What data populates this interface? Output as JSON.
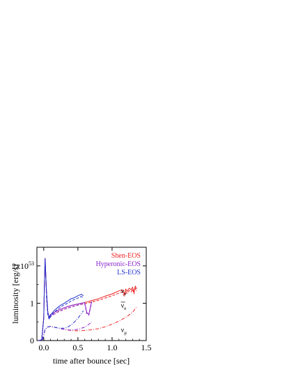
{
  "chart_data": {
    "type": "line",
    "xlabel": "time after bounce [sec]",
    "ylabel": "luminosity [erg/s]",
    "xlim": [
      -0.1,
      1.5
    ],
    "ylim": [
      0,
      2.5
    ],
    "y_unit_note": "1e53 erg/s",
    "x_ticks": [
      {
        "value": 0.0,
        "label": "0.0"
      },
      {
        "value": 0.5,
        "label": "0.5"
      },
      {
        "value": 1.0,
        "label": "1.0"
      },
      {
        "value": 1.5,
        "label": "1.5"
      }
    ],
    "y_ticks": [
      {
        "value": 0,
        "label": "0"
      },
      {
        "value": 1,
        "label": "1"
      },
      {
        "value": 2,
        "label": "2x10",
        "sup": "53"
      }
    ],
    "legend": {
      "placement": "top-right",
      "entries": [
        {
          "label": "Shen-EOS",
          "color": "#ee2222"
        },
        {
          "label": "Hyperonic-EOS",
          "color": "#8822cc"
        },
        {
          "label": "LS-EOS",
          "color": "#2233cc"
        }
      ]
    },
    "annotations": [
      {
        "label": "ν",
        "sub": "e",
        "bar": false,
        "x": 1.13,
        "y": 1.27
      },
      {
        "label": "ν",
        "sub": "e",
        "bar": true,
        "x": 1.13,
        "y": 0.88
      },
      {
        "label": "ν",
        "sub": "μ",
        "bar": false,
        "x": 1.13,
        "y": 0.22
      }
    ],
    "series": [
      {
        "name": "Shen-EOS",
        "flavor": "νe",
        "color": "#ee2222",
        "dash": "solid",
        "x": [
          -0.08,
          -0.03,
          0.0,
          0.01,
          0.02,
          0.04,
          0.06,
          0.08,
          0.1,
          0.2,
          0.3,
          0.4,
          0.5,
          0.6,
          0.7,
          0.8,
          0.9,
          1.0,
          1.1,
          1.15,
          1.18,
          1.2,
          1.22,
          1.25,
          1.28,
          1.3,
          1.32,
          1.34,
          1.36
        ],
        "y": [
          0,
          0.02,
          0.6,
          1.5,
          2.2,
          1.3,
          0.75,
          0.62,
          0.7,
          0.8,
          0.88,
          0.94,
          0.98,
          1.02,
          1.07,
          1.12,
          1.19,
          1.25,
          1.33,
          1.36,
          1.25,
          1.38,
          1.32,
          1.4,
          1.36,
          1.43,
          1.3,
          1.46,
          1.38
        ]
      },
      {
        "name": "Shen-EOS",
        "flavor": "anti-νe",
        "color": "#ee2222",
        "dash": "dashed",
        "x": [
          0.04,
          0.06,
          0.08,
          0.1,
          0.2,
          0.3,
          0.4,
          0.5,
          0.6,
          0.7,
          0.8,
          0.9,
          1.0,
          1.1,
          1.15,
          1.18,
          1.2,
          1.22,
          1.25,
          1.28,
          1.3,
          1.32,
          1.34,
          1.36
        ],
        "y": [
          1.2,
          0.7,
          0.58,
          0.65,
          0.76,
          0.84,
          0.9,
          0.95,
          0.99,
          1.03,
          1.08,
          1.14,
          1.2,
          1.27,
          1.3,
          1.18,
          1.32,
          1.26,
          1.34,
          1.3,
          1.38,
          1.25,
          1.4,
          1.33
        ]
      },
      {
        "name": "Shen-EOS",
        "flavor": "νμ",
        "color": "#ee2222",
        "dash": "dashdot",
        "x": [
          -0.02,
          0.0,
          0.02,
          0.05,
          0.1,
          0.15,
          0.2,
          0.3,
          0.4,
          0.5,
          0.6,
          0.7,
          0.8,
          0.9,
          1.0,
          1.1,
          1.2,
          1.3,
          1.36
        ],
        "y": [
          0.02,
          0.15,
          0.3,
          0.36,
          0.38,
          0.36,
          0.34,
          0.3,
          0.27,
          0.26,
          0.27,
          0.29,
          0.32,
          0.37,
          0.44,
          0.52,
          0.62,
          0.76,
          0.9
        ]
      },
      {
        "name": "Hyperonic-EOS",
        "flavor": "νe",
        "color": "#8822cc",
        "dash": "solid",
        "x": [
          -0.08,
          -0.03,
          0.0,
          0.01,
          0.02,
          0.04,
          0.06,
          0.08,
          0.1,
          0.2,
          0.3,
          0.4,
          0.5,
          0.55,
          0.6,
          0.63,
          0.66,
          0.7
        ],
        "y": [
          0,
          0.02,
          0.6,
          1.5,
          2.2,
          1.3,
          0.75,
          0.62,
          0.7,
          0.8,
          0.88,
          0.94,
          0.98,
          1.0,
          1.02,
          0.75,
          0.7,
          1.05
        ]
      },
      {
        "name": "Hyperonic-EOS",
        "flavor": "anti-νe",
        "color": "#8822cc",
        "dash": "dashed",
        "x": [
          0.04,
          0.06,
          0.08,
          0.1,
          0.2,
          0.3,
          0.4,
          0.5,
          0.55,
          0.6,
          0.63,
          0.66,
          0.7
        ],
        "y": [
          1.2,
          0.7,
          0.58,
          0.65,
          0.76,
          0.84,
          0.9,
          0.95,
          0.97,
          0.99,
          0.72,
          0.68,
          1.02
        ]
      },
      {
        "name": "Hyperonic-EOS",
        "flavor": "νμ",
        "color": "#8822cc",
        "dash": "dashdot",
        "x": [
          -0.02,
          0.0,
          0.02,
          0.05,
          0.1,
          0.15,
          0.2,
          0.3,
          0.4,
          0.5,
          0.6,
          0.65,
          0.7
        ],
        "y": [
          0.02,
          0.15,
          0.3,
          0.36,
          0.38,
          0.36,
          0.34,
          0.3,
          0.28,
          0.3,
          0.36,
          0.42,
          0.5
        ]
      },
      {
        "name": "LS-EOS",
        "flavor": "νe",
        "color": "#2233cc",
        "dash": "solid",
        "x": [
          -0.08,
          -0.03,
          0.0,
          0.01,
          0.02,
          0.04,
          0.06,
          0.08,
          0.1,
          0.15,
          0.2,
          0.25,
          0.3,
          0.35,
          0.4,
          0.45,
          0.5,
          0.55,
          0.58
        ],
        "y": [
          0,
          0.02,
          0.6,
          1.5,
          2.2,
          1.3,
          0.75,
          0.6,
          0.68,
          0.8,
          0.88,
          0.95,
          1.0,
          1.06,
          1.12,
          1.15,
          1.2,
          1.24,
          1.2
        ]
      },
      {
        "name": "LS-EOS",
        "flavor": "anti-νe",
        "color": "#2233cc",
        "dash": "dashed",
        "x": [
          0.04,
          0.06,
          0.08,
          0.1,
          0.15,
          0.2,
          0.25,
          0.3,
          0.35,
          0.4,
          0.45,
          0.5,
          0.55,
          0.58
        ],
        "y": [
          1.2,
          0.68,
          0.57,
          0.64,
          0.75,
          0.83,
          0.9,
          0.96,
          1.0,
          1.06,
          1.1,
          1.14,
          1.18,
          1.15
        ]
      },
      {
        "name": "LS-EOS",
        "flavor": "νμ",
        "color": "#2233cc",
        "dash": "dashdot",
        "x": [
          -0.02,
          0.0,
          0.02,
          0.05,
          0.1,
          0.15,
          0.2,
          0.25,
          0.3,
          0.35,
          0.4,
          0.45,
          0.5,
          0.55,
          0.58
        ],
        "y": [
          0.02,
          0.15,
          0.3,
          0.36,
          0.38,
          0.36,
          0.34,
          0.33,
          0.33,
          0.36,
          0.42,
          0.5,
          0.6,
          0.72,
          0.8
        ]
      }
    ]
  }
}
